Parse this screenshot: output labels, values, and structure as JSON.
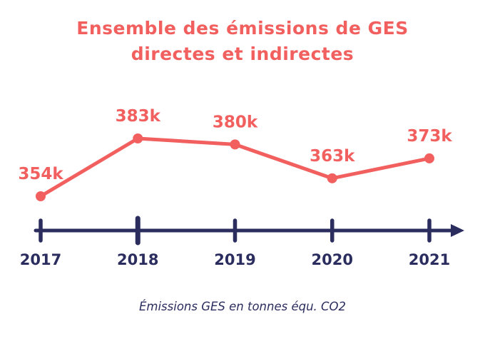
{
  "title": {
    "line1": "Ensemble des émissions de GES",
    "line2": "directes et indirectes"
  },
  "caption": "Émissions GES en tonnes équ. CO2",
  "colors": {
    "accent": "#f25f5f",
    "axis": "#2b2d5e",
    "background": "#ffffff"
  },
  "chart_data": {
    "type": "line",
    "title": "Ensemble des émissions de GES directes et indirectes",
    "categories": [
      "2017",
      "2018",
      "2019",
      "2020",
      "2021"
    ],
    "values": [
      354000,
      383000,
      380000,
      363000,
      373000
    ],
    "point_labels": [
      "354k",
      "383k",
      "380k",
      "363k",
      "373k"
    ],
    "unit": "tonnes équ. CO2",
    "ylabel": "Émissions GES en tonnes équ. CO2",
    "ylim": [
      350000,
      390000
    ],
    "grid": false,
    "legend": false
  }
}
